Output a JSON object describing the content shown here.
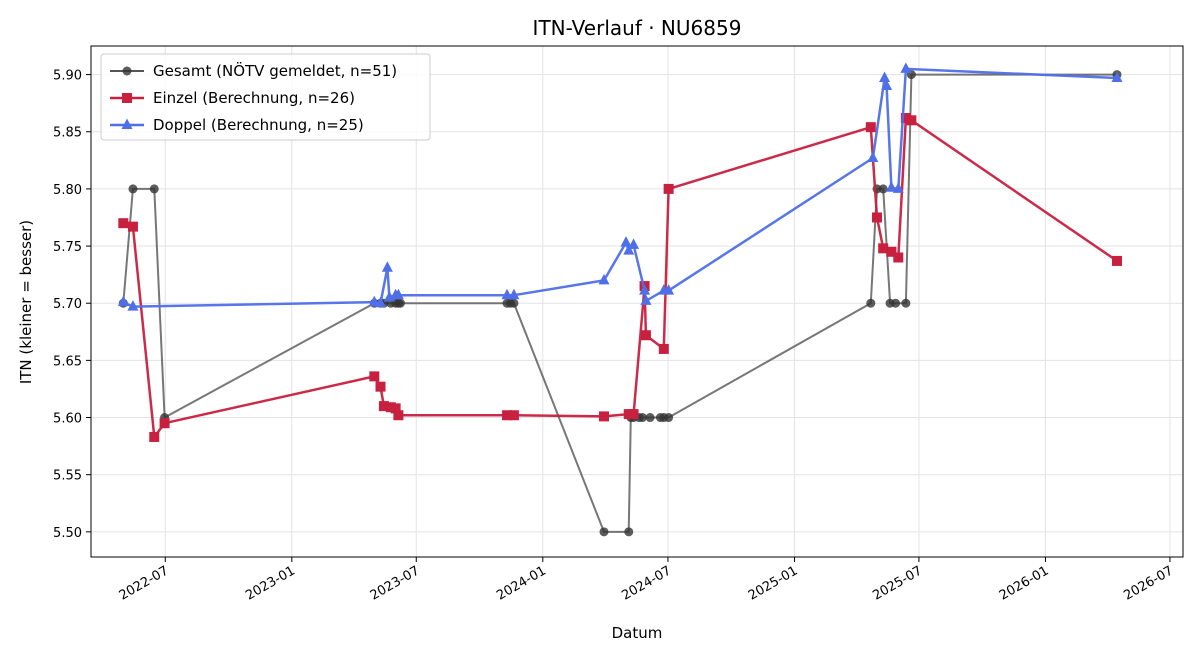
{
  "chart_data": {
    "type": "line",
    "title": "ITN-Verlauf · NU6859",
    "xlabel": "Datum",
    "ylabel": "ITN  (kleiner = besser)",
    "x_type": "date",
    "xlim": [
      "2022-03-15",
      "2026-07-20"
    ],
    "ylim": [
      5.478,
      5.925
    ],
    "x_ticks": [
      "2022-07-01",
      "2023-01-01",
      "2023-07-01",
      "2024-01-01",
      "2024-07-01",
      "2025-01-01",
      "2025-07-01",
      "2026-01-01",
      "2026-07-01"
    ],
    "x_tick_labels": [
      "2022-07",
      "2023-01",
      "2023-07",
      "2024-01",
      "2024-07",
      "2025-01",
      "2025-07",
      "2026-01",
      "2026-07"
    ],
    "y_ticks": [
      5.5,
      5.55,
      5.6,
      5.65,
      5.7,
      5.75,
      5.8,
      5.85,
      5.9
    ],
    "y_tick_labels": [
      "5.50",
      "5.55",
      "5.60",
      "5.65",
      "5.70",
      "5.75",
      "5.80",
      "5.85",
      "5.90"
    ],
    "grid": true,
    "legend_position": "top-left",
    "series": [
      {
        "name": "Gesamt (NÖTV gemeldet, n=51)",
        "color": "#555555",
        "marker": "circle",
        "points": [
          [
            "2022-05-01",
            5.7
          ],
          [
            "2022-05-15",
            5.8
          ],
          [
            "2022-06-15",
            5.8
          ],
          [
            "2022-06-30",
            5.6
          ],
          [
            "2023-05-01",
            5.7
          ],
          [
            "2023-05-10",
            5.7
          ],
          [
            "2023-05-15",
            5.7
          ],
          [
            "2023-05-25",
            5.7
          ],
          [
            "2023-06-01",
            5.7
          ],
          [
            "2023-06-05",
            5.7
          ],
          [
            "2023-06-08",
            5.7
          ],
          [
            "2023-11-10",
            5.7
          ],
          [
            "2023-11-15",
            5.7
          ],
          [
            "2023-11-20",
            5.7
          ],
          [
            "2024-03-30",
            5.5
          ],
          [
            "2024-05-05",
            5.5
          ],
          [
            "2024-05-08",
            5.6
          ],
          [
            "2024-05-12",
            5.6
          ],
          [
            "2024-05-20",
            5.6
          ],
          [
            "2024-05-25",
            5.6
          ],
          [
            "2024-06-05",
            5.6
          ],
          [
            "2024-06-20",
            5.6
          ],
          [
            "2024-06-25",
            5.6
          ],
          [
            "2024-07-02",
            5.6
          ],
          [
            "2025-04-22",
            5.7
          ],
          [
            "2025-05-01",
            5.8
          ],
          [
            "2025-05-10",
            5.8
          ],
          [
            "2025-05-20",
            5.7
          ],
          [
            "2025-05-28",
            5.7
          ],
          [
            "2025-06-12",
            5.7
          ],
          [
            "2025-06-20",
            5.9
          ],
          [
            "2026-04-15",
            5.9
          ]
        ]
      },
      {
        "name": "Einzel (Berechnung, n=26)",
        "color": "#c8203f",
        "marker": "square",
        "points": [
          [
            "2022-05-01",
            5.77
          ],
          [
            "2022-05-15",
            5.767
          ],
          [
            "2022-06-15",
            5.583
          ],
          [
            "2022-06-30",
            5.595
          ],
          [
            "2023-05-01",
            5.636
          ],
          [
            "2023-05-10",
            5.627
          ],
          [
            "2023-05-15",
            5.61
          ],
          [
            "2023-05-25",
            5.609
          ],
          [
            "2023-06-01",
            5.608
          ],
          [
            "2023-06-05",
            5.602
          ],
          [
            "2023-11-10",
            5.602
          ],
          [
            "2023-11-20",
            5.602
          ],
          [
            "2024-03-30",
            5.601
          ],
          [
            "2024-05-05",
            5.603
          ],
          [
            "2024-05-12",
            5.603
          ],
          [
            "2024-05-28",
            5.715
          ],
          [
            "2024-05-30",
            5.672
          ],
          [
            "2024-06-25",
            5.66
          ],
          [
            "2024-07-02",
            5.8
          ],
          [
            "2025-04-22",
            5.854
          ],
          [
            "2025-05-01",
            5.775
          ],
          [
            "2025-05-10",
            5.748
          ],
          [
            "2025-05-22",
            5.745
          ],
          [
            "2025-06-01",
            5.74
          ],
          [
            "2025-06-12",
            5.862
          ],
          [
            "2025-06-20",
            5.86
          ],
          [
            "2026-04-15",
            5.737
          ]
        ]
      },
      {
        "name": "Doppel (Berechnung, n=25)",
        "color": "#4f6fe8",
        "marker": "triangle",
        "points": [
          [
            "2022-05-01",
            5.701
          ],
          [
            "2022-05-15",
            5.697
          ],
          [
            "2023-05-01",
            5.701
          ],
          [
            "2023-05-10",
            5.7
          ],
          [
            "2023-05-20",
            5.731
          ],
          [
            "2023-05-23",
            5.705
          ],
          [
            "2023-06-01",
            5.707
          ],
          [
            "2023-06-05",
            5.707
          ],
          [
            "2023-11-10",
            5.707
          ],
          [
            "2023-11-20",
            5.707
          ],
          [
            "2024-03-30",
            5.72
          ],
          [
            "2024-05-01",
            5.753
          ],
          [
            "2024-05-05",
            5.746
          ],
          [
            "2024-05-12",
            5.751
          ],
          [
            "2024-05-28",
            5.711
          ],
          [
            "2024-05-30",
            5.702
          ],
          [
            "2024-06-25",
            5.711
          ],
          [
            "2024-07-02",
            5.711
          ],
          [
            "2025-04-25",
            5.827
          ],
          [
            "2025-05-12",
            5.897
          ],
          [
            "2025-05-15",
            5.89
          ],
          [
            "2025-05-22",
            5.801
          ],
          [
            "2025-06-01",
            5.8
          ],
          [
            "2025-06-12",
            5.905
          ],
          [
            "2026-04-15",
            5.897
          ]
        ]
      }
    ]
  }
}
